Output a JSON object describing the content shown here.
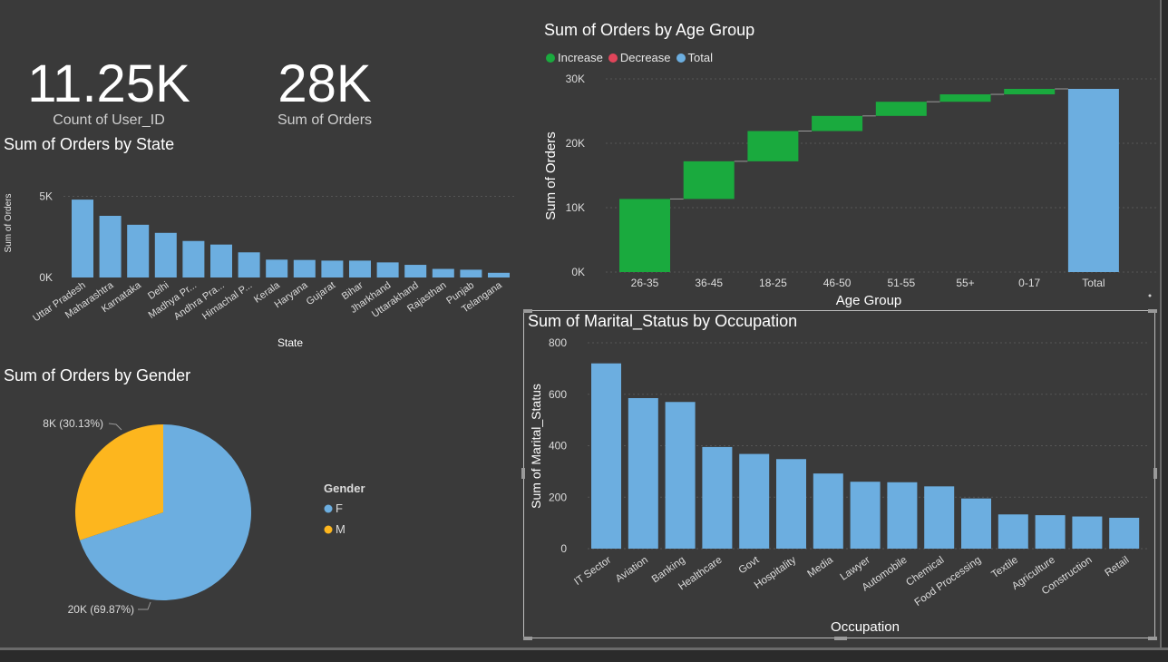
{
  "kpis": [
    {
      "value": "11.25K",
      "label": "Count of User_ID"
    },
    {
      "value": "28K",
      "label": "Sum of Orders"
    }
  ],
  "colors": {
    "bar": "#6caee0",
    "increase": "#1aaa3e",
    "decrease": "#e0455a",
    "total": "#6caee0",
    "female": "#6caee0",
    "male": "#fdb61e",
    "background": "#3a3a3a"
  },
  "chart_data": [
    {
      "id": "state",
      "type": "bar",
      "title": "Sum of Orders by State",
      "xlabel": "State",
      "ylabel": "Sum of Orders",
      "yticks": [
        "0K",
        "5K"
      ],
      "ylim": [
        0,
        5700
      ],
      "categories": [
        "Uttar Pradesh",
        "Maharashtra",
        "Karnataka",
        "Delhi",
        "Madhya Pr...",
        "Andhra Pra...",
        "Himachal P...",
        "Kerala",
        "Haryana",
        "Gujarat",
        "Bihar",
        "Jharkhand",
        "Uttarakhand",
        "Rajasthan",
        "Punjab",
        "Telangana"
      ],
      "values": [
        4800,
        3800,
        3250,
        2750,
        2250,
        2030,
        1550,
        1100,
        1080,
        1040,
        1040,
        930,
        780,
        530,
        480,
        290
      ]
    },
    {
      "id": "age",
      "type": "waterfall",
      "title": "Sum of Orders by Age Group",
      "xlabel": "Age Group",
      "ylabel": "Sum of Orders",
      "yticks": [
        "0K",
        "10K",
        "20K",
        "30K"
      ],
      "ylim": [
        0,
        30000
      ],
      "legend": [
        {
          "name": "Increase",
          "color": "#1aaa3e"
        },
        {
          "name": "Decrease",
          "color": "#e0455a"
        },
        {
          "name": "Total",
          "color": "#6caee0"
        }
      ],
      "categories": [
        "26-35",
        "36-45",
        "18-25",
        "46-50",
        "51-55",
        "55+",
        "0-17",
        "Total"
      ],
      "values": [
        11350,
        5850,
        4700,
        2350,
        2200,
        1150,
        850,
        28450
      ],
      "grid": true,
      "legend_position": "top-left"
    },
    {
      "id": "gender",
      "type": "pie",
      "title": "Sum of Orders by Gender",
      "legend_title": "Gender",
      "labels": [
        "F",
        "M"
      ],
      "values": [
        69.87,
        30.13
      ],
      "data_labels": [
        "20K (69.87%)",
        "8K (30.13%)"
      ],
      "legend_position": "right"
    },
    {
      "id": "occupation",
      "type": "bar",
      "title": "Sum of Marital_Status by Occupation",
      "xlabel": "Occupation",
      "ylabel": "Sum of Marital_Status",
      "yticks": [
        "0",
        "200",
        "400",
        "600",
        "800"
      ],
      "ylim": [
        0,
        800
      ],
      "categories": [
        "IT Sector",
        "Aviation",
        "Banking",
        "Healthcare",
        "Govt",
        "Hospitality",
        "Media",
        "Lawyer",
        "Automobile",
        "Chemical",
        "Food Processing",
        "Textile",
        "Agriculture",
        "Construction",
        "Retail"
      ],
      "values": [
        720,
        585,
        570,
        395,
        368,
        348,
        292,
        260,
        258,
        242,
        195,
        133,
        130,
        125,
        120
      ],
      "grid": true
    }
  ]
}
